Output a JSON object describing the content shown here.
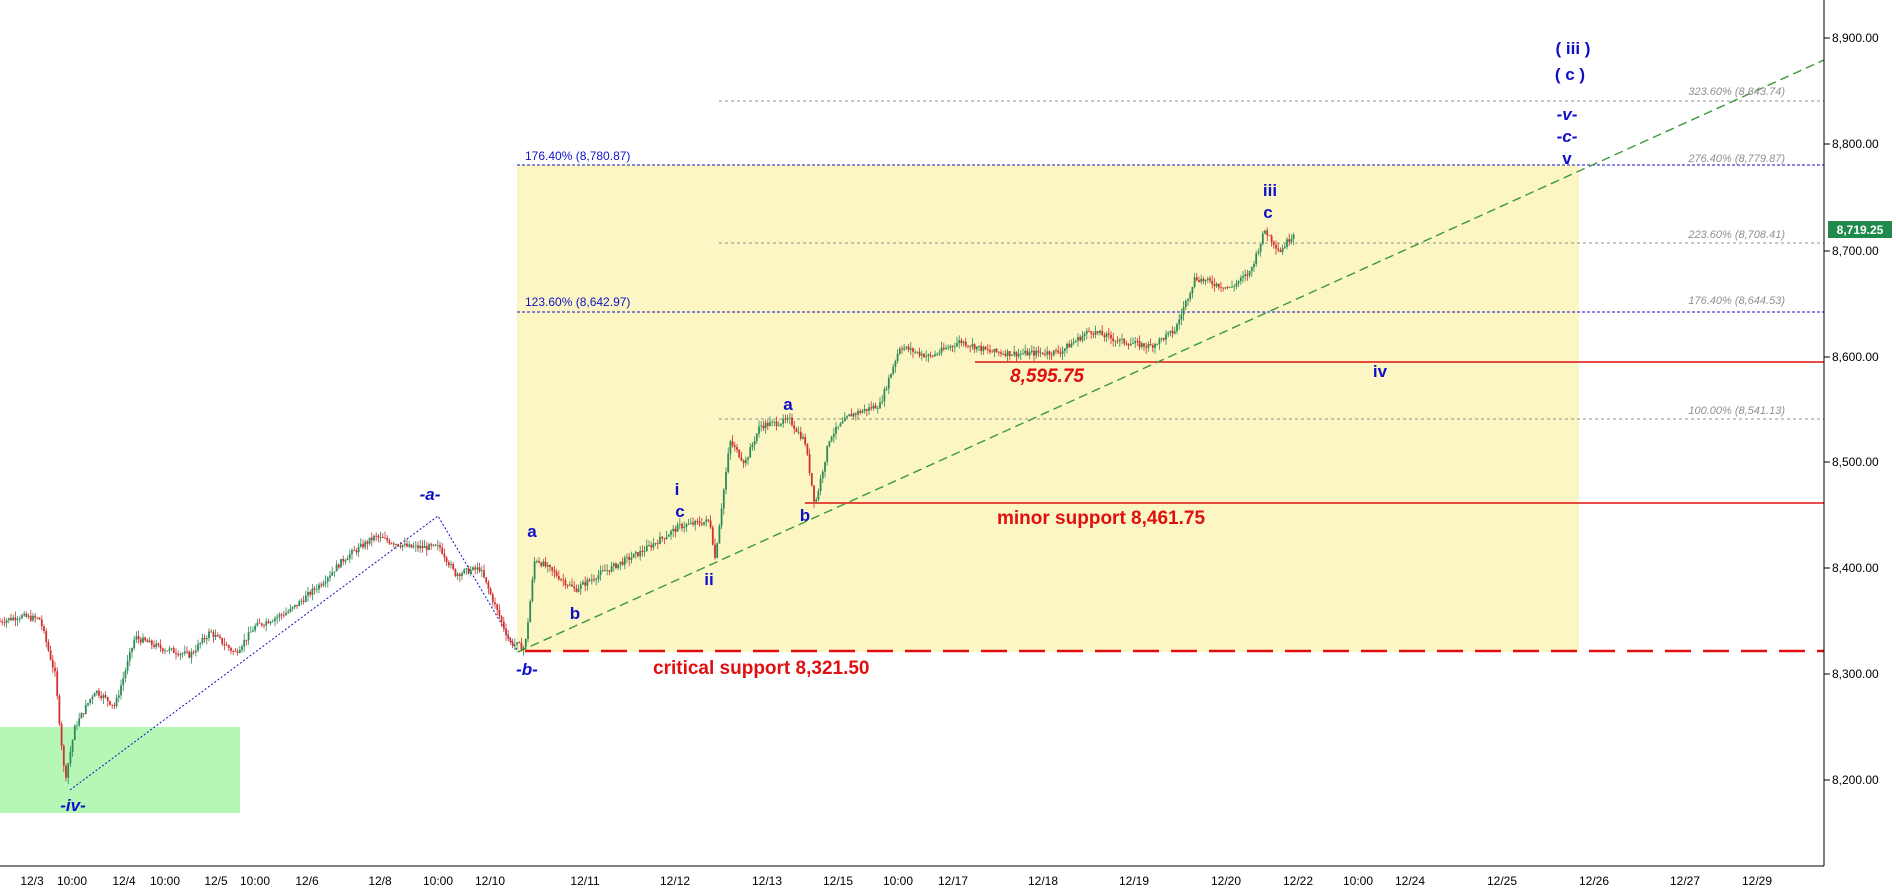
{
  "chart_data": {
    "type": "candlestick",
    "y_axis": {
      "range": [
        8100,
        8920
      ],
      "ticks": [
        "8,200.00",
        "8,300.00",
        "8,400.00",
        "8,500.00",
        "8,600.00",
        "8,700.00",
        "8,800.00",
        "8,900.00"
      ],
      "tick_values": [
        8200,
        8300,
        8400,
        8500,
        8600,
        8700,
        8800,
        8900
      ],
      "grid": false
    },
    "x_axis": {
      "tick_labels": [
        "12/3",
        "10:00",
        "12/4",
        "10:00",
        "12/5",
        "10:00",
        "12/6",
        "12/8",
        "10:00",
        "12/10",
        "12/11",
        "12/12",
        "12/13",
        "12/15",
        "10:00",
        "12/17",
        "12/18",
        "12/19",
        "12/20",
        "12/22",
        "10:00",
        "12/24",
        "12/25",
        "12/26",
        "12/27",
        "12/29"
      ]
    },
    "last_price": {
      "label": "8,719.25",
      "value": 8719.25
    },
    "price_path": [
      [
        0,
        8350
      ],
      [
        20,
        8355
      ],
      [
        40,
        8352
      ],
      [
        55,
        8300
      ],
      [
        65,
        8200
      ],
      [
        75,
        8250
      ],
      [
        95,
        8285
      ],
      [
        115,
        8270
      ],
      [
        135,
        8335
      ],
      [
        160,
        8325
      ],
      [
        190,
        8318
      ],
      [
        210,
        8340
      ],
      [
        235,
        8320
      ],
      [
        255,
        8345
      ],
      [
        290,
        8360
      ],
      [
        320,
        8385
      ],
      [
        345,
        8410
      ],
      [
        375,
        8430
      ],
      [
        410,
        8420
      ],
      [
        440,
        8420
      ],
      [
        455,
        8395
      ],
      [
        480,
        8400
      ],
      [
        510,
        8330
      ],
      [
        525,
        8325
      ],
      [
        535,
        8410
      ],
      [
        555,
        8395
      ],
      [
        575,
        8380
      ],
      [
        600,
        8395
      ],
      [
        640,
        8415
      ],
      [
        680,
        8440
      ],
      [
        710,
        8445
      ],
      [
        715,
        8410
      ],
      [
        730,
        8520
      ],
      [
        745,
        8500
      ],
      [
        760,
        8535
      ],
      [
        790,
        8540
      ],
      [
        805,
        8520
      ],
      [
        815,
        8460
      ],
      [
        830,
        8525
      ],
      [
        850,
        8545
      ],
      [
        880,
        8555
      ],
      [
        900,
        8610
      ],
      [
        930,
        8600
      ],
      [
        960,
        8615
      ],
      [
        990,
        8605
      ],
      [
        1020,
        8603
      ],
      [
        1060,
        8605
      ],
      [
        1090,
        8625
      ],
      [
        1120,
        8615
      ],
      [
        1150,
        8610
      ],
      [
        1175,
        8625
      ],
      [
        1195,
        8675
      ],
      [
        1230,
        8665
      ],
      [
        1250,
        8680
      ],
      [
        1265,
        8720
      ],
      [
        1280,
        8700
      ],
      [
        1295,
        8719
      ]
    ],
    "fib_levels_left": [
      {
        "label": "176.40% (8,780.87)",
        "value": 8780.87
      },
      {
        "label": "123.60% (8,642.97)",
        "value": 8642.97
      }
    ],
    "fib_levels_right": [
      {
        "label": "323.60% (8,843.74)",
        "value": 8843.74
      },
      {
        "label": "276.40% (8,779.87)",
        "value": 8779.87
      },
      {
        "label": "223.60% (8,708.41)",
        "value": 8708.41
      },
      {
        "label": "176.40% (8,644.53)",
        "value": 8644.53
      },
      {
        "label": "100.00% (8,541.13)",
        "value": 8541.13
      }
    ],
    "supports": [
      {
        "label": "critical support 8,321.50",
        "value": 8321.5
      },
      {
        "label": "minor support 8,461.75",
        "value": 8461.75
      },
      {
        "label": "8,595.75",
        "value": 8595.75
      }
    ],
    "wave_labels": [
      "( iii )",
      "( c )",
      "-v-",
      "-c-",
      "v",
      "iii",
      "c",
      "iv",
      "a",
      "b",
      "i",
      "c",
      "ii",
      "a",
      "b",
      "-a-",
      "-b-",
      "-iv-"
    ],
    "colors": {
      "wave_label": "#1010c8",
      "support": "#e01010",
      "trendline": "#3a9a3a",
      "projection_box": "#fbf6c4",
      "green_zone": "#b6f7b6",
      "last_price_badge": "#1f8a4c",
      "candle_up": "#2e8b57",
      "candle_down": "#d03030"
    }
  }
}
